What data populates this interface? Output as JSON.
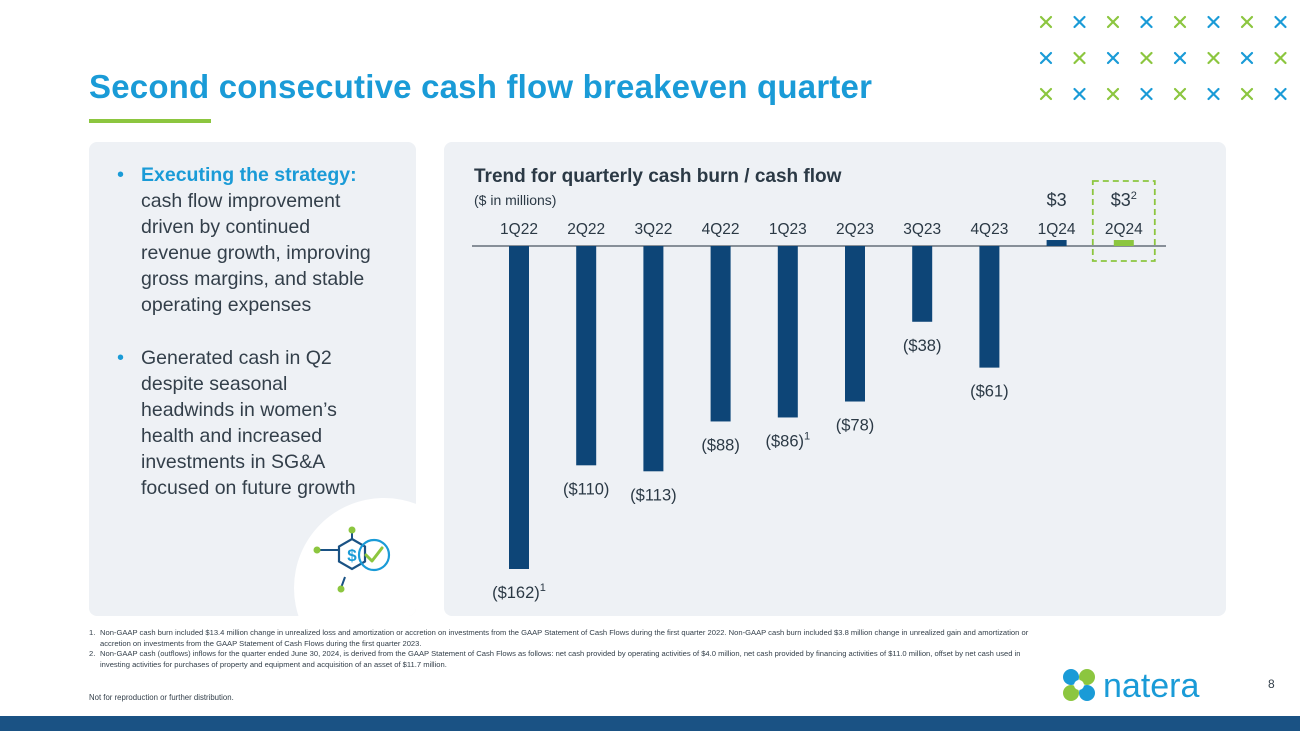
{
  "slide": {
    "title": "Second consecutive cash flow breakeven quarter",
    "page_number": "8",
    "disclaimer": "Not for reproduction or further distribution.",
    "logo_text": "natera"
  },
  "colors": {
    "accent_blue": "#1a9bd7",
    "accent_green": "#8cc63f",
    "bar_navy": "#0d4577",
    "panel_bg": "#eef1f5",
    "footer_bar": "#1a5284"
  },
  "bullets": [
    {
      "bold": "Executing the strategy:",
      "text": "cash flow improvement driven by continued revenue growth, improving gross margins, and stable operating expenses"
    },
    {
      "bold": "",
      "text": "Generated cash in Q2 despite seasonal headwinds in women’s health and increased investments in SG&A focused on future growth"
    }
  ],
  "icons": {
    "strategy": "dollar-hexagon-check-icon",
    "decor": "x-pattern-icon",
    "logo": "natera-clover-logo-icon"
  },
  "chart_data": {
    "type": "bar",
    "title": "Trend for quarterly cash burn / cash flow",
    "subtitle": "($ in millions)",
    "categories": [
      "1Q22",
      "2Q22",
      "3Q22",
      "4Q22",
      "1Q23",
      "2Q23",
      "3Q23",
      "4Q23",
      "1Q24",
      "2Q24"
    ],
    "values": [
      -162,
      -110,
      -113,
      -88,
      -86,
      -78,
      -38,
      -61,
      3,
      3
    ],
    "labels": [
      "($162)",
      "($110)",
      "($113)",
      "($88)",
      "($86)",
      "($78)",
      "($38)",
      "($61)",
      "$3",
      "$3"
    ],
    "label_superscripts": [
      "1",
      "",
      "",
      "",
      "1",
      "",
      "",
      "",
      "",
      "2"
    ],
    "highlight_index": 9,
    "xlabel": "",
    "ylabel": "",
    "ylim": [
      -162,
      3
    ]
  },
  "footnotes": [
    {
      "num": "1.",
      "text": "Non-GAAP cash burn included $13.4 million change in unrealized loss and amortization or accretion on investments from the GAAP Statement of Cash Flows during the first quarter 2022. Non-GAAP cash burn included $3.8 million change in unrealized gain and amortization or accretion on investments from the GAAP Statement of Cash Flows during the first quarter 2023."
    },
    {
      "num": "2.",
      "text": "Non-GAAP cash (outflows) inflows for the quarter ended June 30, 2024, is derived from the GAAP Statement of Cash Flows as follows: net cash provided by operating activities of $4.0 million, net cash provided by financing activities of $11.0 million, offset by net cash used in investing activities for purchases of property and equipment and acquisition of an asset of $11.7 million."
    }
  ]
}
